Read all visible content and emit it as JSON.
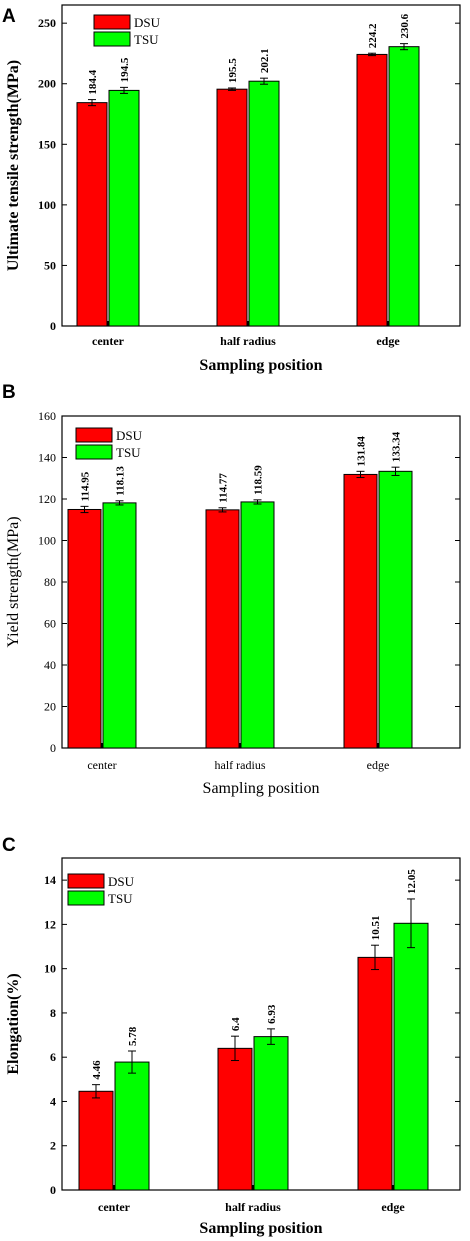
{
  "panels": [
    {
      "letter": "A",
      "ylabel": "Ultimate tensile strength(MPa)",
      "xlabel": "Sampling position",
      "bold": true,
      "yticks": [
        0,
        50,
        100,
        150,
        200,
        250
      ]
    },
    {
      "letter": "B",
      "ylabel": "Yield strength(MPa)",
      "xlabel": "Sampling position",
      "bold": false,
      "yticks": [
        0,
        20,
        40,
        60,
        80,
        100,
        120,
        140,
        160
      ]
    },
    {
      "letter": "C",
      "ylabel": "Elongation(%)",
      "xlabel": "Sampling position",
      "bold": true,
      "yticks": [
        0,
        2,
        4,
        6,
        8,
        10,
        12,
        14
      ]
    }
  ],
  "chart_data": [
    {
      "type": "bar",
      "categories": [
        "center",
        "half radius",
        "edge"
      ],
      "series": [
        {
          "name": "DSU",
          "values": [
            184.4,
            195.5,
            224.2
          ],
          "errors": [
            2.5,
            1.0,
            1.0
          ],
          "labels": [
            "184.4",
            "195.5",
            "224.2"
          ],
          "color": "#ff0000"
        },
        {
          "name": "TSU",
          "values": [
            194.5,
            202.1,
            230.6
          ],
          "errors": [
            2.5,
            2.5,
            2.5
          ],
          "labels": [
            "194.5",
            "202.1",
            "230.6"
          ],
          "color": "#00ff00"
        }
      ],
      "title": "",
      "xlabel": "Sampling position",
      "ylabel": "Ultimate tensile strength(MPa)",
      "ylim": [
        0,
        265
      ],
      "legend": "top-left",
      "grid": false
    },
    {
      "type": "bar",
      "categories": [
        "center",
        "half radius",
        "edge"
      ],
      "series": [
        {
          "name": "DSU",
          "values": [
            114.95,
            114.77,
            131.84
          ],
          "errors": [
            1.5,
            1.0,
            1.5
          ],
          "labels": [
            "114.95",
            "114.77",
            "131.84"
          ],
          "color": "#ff0000"
        },
        {
          "name": "TSU",
          "values": [
            118.13,
            118.59,
            133.34
          ],
          "errors": [
            1.0,
            1.0,
            2.0
          ],
          "labels": [
            "118.13",
            "118.59",
            "133.34"
          ],
          "color": "#00ff00"
        }
      ],
      "title": "",
      "xlabel": "Sampling position",
      "ylabel": "Yield strength(MPa)",
      "ylim": [
        0,
        160
      ],
      "legend": "top-left",
      "grid": false
    },
    {
      "type": "bar",
      "categories": [
        "center",
        "half radius",
        "edge"
      ],
      "series": [
        {
          "name": "DSU",
          "values": [
            4.46,
            6.4,
            10.51
          ],
          "errors": [
            0.3,
            0.55,
            0.55
          ],
          "labels": [
            "4.46",
            "6.4",
            "10.51"
          ],
          "color": "#ff0000"
        },
        {
          "name": "TSU",
          "values": [
            5.78,
            6.93,
            12.05
          ],
          "errors": [
            0.5,
            0.35,
            1.1
          ],
          "labels": [
            "5.78",
            "6.93",
            "12.05"
          ],
          "color": "#00ff00"
        }
      ],
      "title": "",
      "xlabel": "Sampling position",
      "ylabel": "Elongation(%)",
      "ylim": [
        0,
        15
      ],
      "legend": "top-left",
      "grid": false
    }
  ]
}
